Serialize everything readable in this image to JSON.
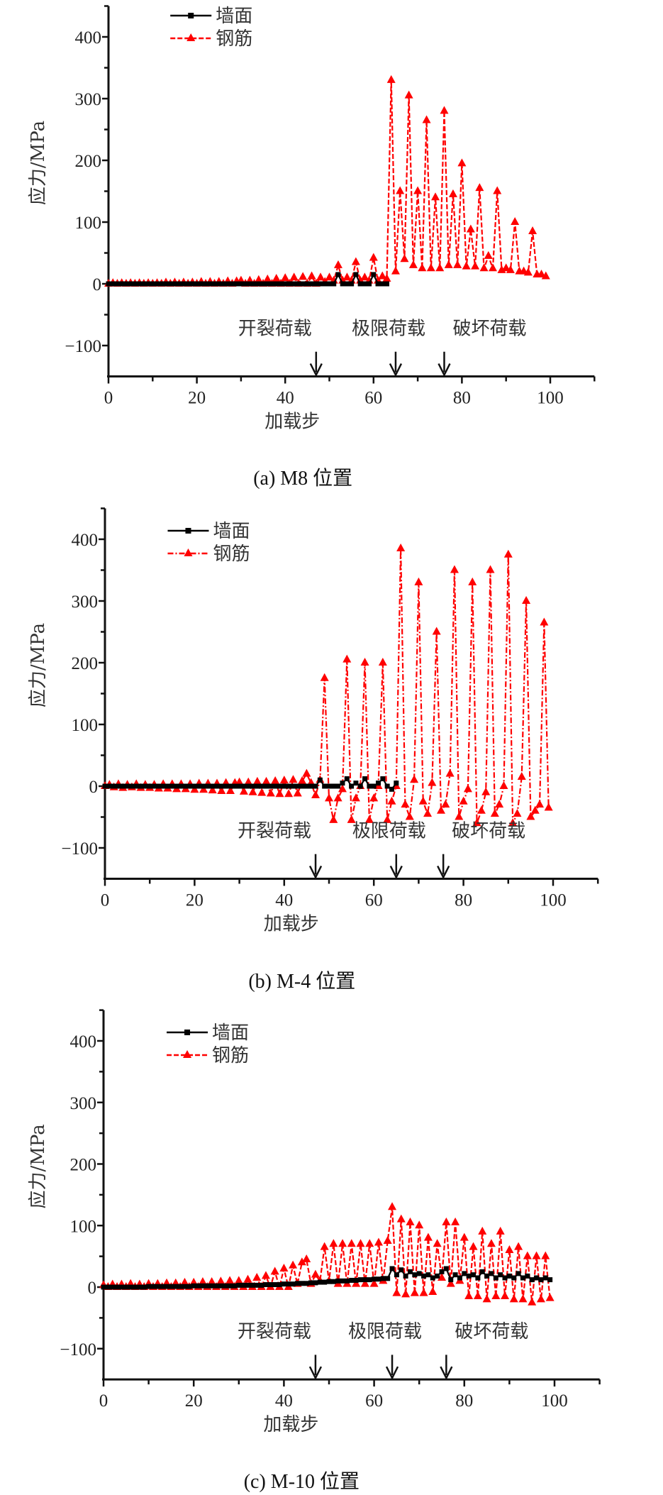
{
  "chart_data": [
    {
      "type": "line",
      "caption": "(a) M8 位置",
      "xlabel": "加载步",
      "ylabel": "应力/MPa",
      "xlim": [
        0,
        110
      ],
      "ylim": [
        -150,
        450
      ],
      "xticks": [
        0,
        20,
        40,
        60,
        80,
        100
      ],
      "yticks": [
        -100,
        0,
        100,
        200,
        300,
        400
      ],
      "grid": false,
      "legend": "top-left",
      "annotations": [
        {
          "label": "开裂荷载",
          "x": 47
        },
        {
          "label": "极限荷载",
          "x": 65
        },
        {
          "label": "破坏荷载",
          "x": 76
        }
      ],
      "series": [
        {
          "name": "墙面",
          "color": "#000000",
          "marker": "square",
          "line": "solid",
          "x_start": 0,
          "values": [
            0,
            0,
            0,
            0,
            0,
            0,
            0,
            0,
            0,
            0,
            0,
            0,
            0,
            0,
            0,
            0,
            0,
            0,
            0,
            0,
            0,
            0,
            0,
            0,
            0,
            0,
            0,
            0,
            0,
            0,
            0,
            0,
            0,
            0,
            0,
            0,
            0,
            0,
            0,
            0,
            0,
            0,
            0,
            0,
            0,
            0,
            0,
            0,
            0,
            0,
            0,
            0,
            15,
            0,
            0,
            0,
            15,
            0,
            0,
            0,
            15,
            0,
            0,
            0
          ]
        },
        {
          "name": "钢筋",
          "color": "#ff0000",
          "marker": "triangle",
          "line": "dashed",
          "x_start": 0,
          "values": [
            0,
            1,
            0,
            1,
            0,
            1,
            0,
            1,
            0,
            1,
            0,
            1,
            0,
            2,
            0,
            2,
            0,
            2,
            0,
            2,
            0,
            3,
            0,
            3,
            0,
            3,
            0,
            4,
            0,
            4,
            5,
            0,
            5,
            0,
            6,
            0,
            7,
            0,
            8,
            0,
            9,
            0,
            10,
            0,
            11,
            0,
            12,
            0,
            10,
            3,
            10,
            5,
            30,
            5,
            10,
            5,
            35,
            5,
            10,
            5,
            42,
            5,
            12,
            8,
            330,
            20,
            150,
            40,
            305,
            30,
            150,
            25,
            265,
            25,
            140,
            25,
            280,
            30,
            145,
            30,
            195,
            28,
            88,
            28,
            155,
            25,
            45,
            25,
            150,
            22,
            25,
            22,
            100,
            20,
            20,
            18,
            85,
            15,
            15,
            12
          ]
        }
      ]
    },
    {
      "type": "line",
      "caption": "(b) M-4 位置",
      "xlabel": "加载步",
      "ylabel": "应力/MPa",
      "xlim": [
        0,
        110
      ],
      "ylim": [
        -150,
        450
      ],
      "xticks": [
        0,
        20,
        40,
        60,
        80,
        100
      ],
      "yticks": [
        -100,
        0,
        100,
        200,
        300,
        400
      ],
      "grid": false,
      "legend": "top-left",
      "annotations": [
        {
          "label": "开裂荷载",
          "x": 47
        },
        {
          "label": "极限荷载",
          "x": 65
        },
        {
          "label": "破坏荷载",
          "x": 75.5
        }
      ],
      "series": [
        {
          "name": "墙面",
          "color": "#000000",
          "marker": "square",
          "line": "solid",
          "x_start": 0,
          "values": [
            0,
            0,
            0,
            0,
            0,
            0,
            0,
            0,
            0,
            0,
            0,
            0,
            0,
            0,
            0,
            0,
            0,
            0,
            0,
            0,
            0,
            0,
            0,
            0,
            0,
            0,
            0,
            0,
            0,
            0,
            0,
            0,
            0,
            0,
            0,
            0,
            0,
            0,
            0,
            0,
            0,
            0,
            0,
            0,
            0,
            0,
            0,
            0,
            10,
            0,
            0,
            0,
            0,
            5,
            12,
            0,
            5,
            0,
            12,
            0,
            0,
            5,
            12,
            0,
            -5,
            5
          ]
        },
        {
          "name": "钢筋",
          "color": "#ff0000",
          "marker": "triangle",
          "line": "dash-dot",
          "x_start": 0,
          "values": [
            0,
            2,
            -2,
            3,
            -3,
            2,
            -2,
            3,
            -3,
            2,
            -3,
            2,
            -4,
            3,
            -4,
            3,
            -5,
            3,
            -5,
            3,
            -6,
            4,
            -6,
            4,
            -7,
            4,
            -8,
            5,
            -8,
            5,
            6,
            -9,
            6,
            -10,
            7,
            -11,
            7,
            -12,
            8,
            -13,
            9,
            -13,
            10,
            -12,
            8,
            20,
            5,
            -15,
            10,
            175,
            -20,
            -55,
            -20,
            -5,
            205,
            -55,
            -20,
            0,
            200,
            -55,
            -20,
            0,
            200,
            -55,
            -25,
            0,
            385,
            -30,
            -50,
            10,
            330,
            -25,
            -45,
            5,
            250,
            -40,
            -30,
            20,
            350,
            -50,
            -25,
            -5,
            330,
            -60,
            -40,
            -10,
            350,
            -45,
            -30,
            0,
            375,
            -60,
            -45,
            15,
            300,
            -50,
            -40,
            -30,
            265,
            -35
          ]
        }
      ]
    },
    {
      "type": "line",
      "caption": "(c) M-10 位置",
      "xlabel": "加载步",
      "ylabel": "应力/MPa",
      "xlim": [
        0,
        110
      ],
      "ylim": [
        -150,
        450
      ],
      "xticks": [
        0,
        20,
        40,
        60,
        80,
        100
      ],
      "yticks": [
        -100,
        0,
        100,
        200,
        300,
        400
      ],
      "grid": false,
      "legend": "top-left",
      "annotations": [
        {
          "label": "开裂荷载",
          "x": 47
        },
        {
          "label": "极限荷载",
          "x": 64
        },
        {
          "label": "破坏荷载",
          "x": 76
        }
      ],
      "series": [
        {
          "name": "墙面",
          "color": "#000000",
          "marker": "square",
          "line": "solid",
          "x_start": 0,
          "values": [
            0,
            0,
            0,
            0,
            0,
            0,
            0,
            0,
            0,
            0,
            1,
            1,
            1,
            1,
            1,
            1,
            1,
            1,
            1,
            1,
            2,
            2,
            2,
            2,
            2,
            2,
            2,
            2,
            2,
            2,
            3,
            3,
            3,
            3,
            3,
            3,
            4,
            4,
            4,
            4,
            5,
            5,
            5,
            6,
            6,
            6,
            7,
            7,
            8,
            8,
            9,
            9,
            10,
            10,
            10,
            11,
            11,
            12,
            12,
            12,
            13,
            13,
            14,
            14,
            30,
            20,
            28,
            18,
            25,
            20,
            22,
            18,
            20,
            15,
            18,
            25,
            30,
            12,
            20,
            15,
            22,
            18,
            20,
            15,
            25,
            18,
            22,
            15,
            20,
            15,
            18,
            15,
            22,
            15,
            18,
            12,
            15,
            12,
            15,
            12
          ]
        },
        {
          "name": "钢筋",
          "color": "#ff0000",
          "marker": "triangle",
          "line": "dashed",
          "x_start": 0,
          "values": [
            3,
            0,
            4,
            0,
            4,
            0,
            5,
            0,
            4,
            0,
            5,
            0,
            5,
            0,
            6,
            0,
            6,
            0,
            7,
            0,
            7,
            0,
            8,
            0,
            8,
            0,
            9,
            0,
            10,
            0,
            10,
            0,
            12,
            0,
            15,
            0,
            18,
            0,
            25,
            0,
            30,
            0,
            35,
            5,
            40,
            45,
            5,
            20,
            10,
            65,
            10,
            70,
            5,
            70,
            5,
            70,
            5,
            70,
            5,
            70,
            5,
            72,
            10,
            75,
            130,
            -10,
            110,
            -12,
            105,
            -10,
            100,
            -10,
            80,
            -8,
            70,
            15,
            105,
            5,
            105,
            10,
            80,
            -15,
            65,
            -15,
            90,
            -20,
            70,
            -15,
            90,
            -15,
            60,
            -20,
            65,
            -20,
            50,
            -25,
            50,
            -20,
            50,
            -18
          ]
        }
      ]
    }
  ]
}
